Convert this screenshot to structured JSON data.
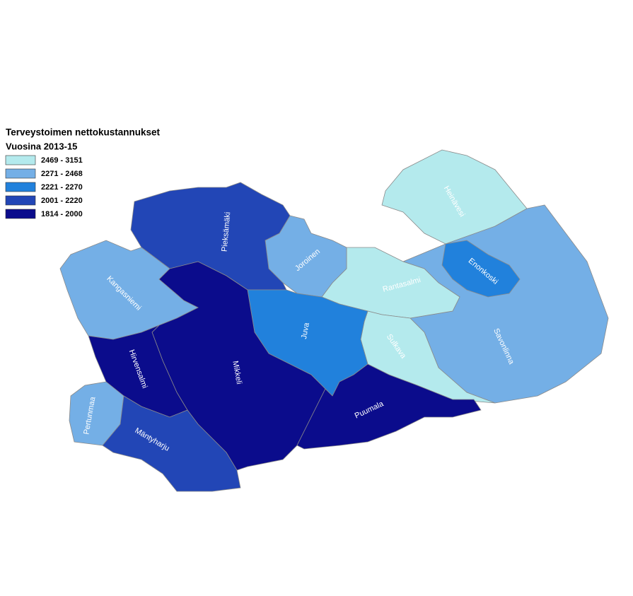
{
  "title": "Terveystoimen nettokustannukset",
  "subtitle": "Vuosina 2013-15",
  "legend": [
    {
      "label": "2469 - 3151",
      "color": "#b4eaed"
    },
    {
      "label": "2271 - 2468",
      "color": "#74afe6"
    },
    {
      "label": "2221 - 2270",
      "color": "#2181dc"
    },
    {
      "label": "2001 - 2220",
      "color": "#2246b6"
    },
    {
      "label": "1814 - 2000",
      "color": "#0b0c8c"
    }
  ],
  "regions": [
    {
      "name": "Heinävesi",
      "color": "#b4eaed"
    },
    {
      "name": "Savonlinna",
      "color": "#74afe6"
    },
    {
      "name": "Enonkoski",
      "color": "#2181dc"
    },
    {
      "name": "Rantasalmi",
      "color": "#b4eaed"
    },
    {
      "name": "Sulkava",
      "color": "#b4eaed"
    },
    {
      "name": "Joroinen",
      "color": "#74afe6"
    },
    {
      "name": "Pieksämäki",
      "color": "#2246b6"
    },
    {
      "name": "Kangasniemi",
      "color": "#74afe6"
    },
    {
      "name": "Juva",
      "color": "#2181dc"
    },
    {
      "name": "Mikkeli",
      "color": "#0b0c8c"
    },
    {
      "name": "Puumala",
      "color": "#0b0c8c"
    },
    {
      "name": "Hirvensalmi",
      "color": "#0b0c8c"
    },
    {
      "name": "Pertunmaa",
      "color": "#74afe6"
    },
    {
      "name": "Mäntyharju",
      "color": "#2246b6"
    }
  ]
}
